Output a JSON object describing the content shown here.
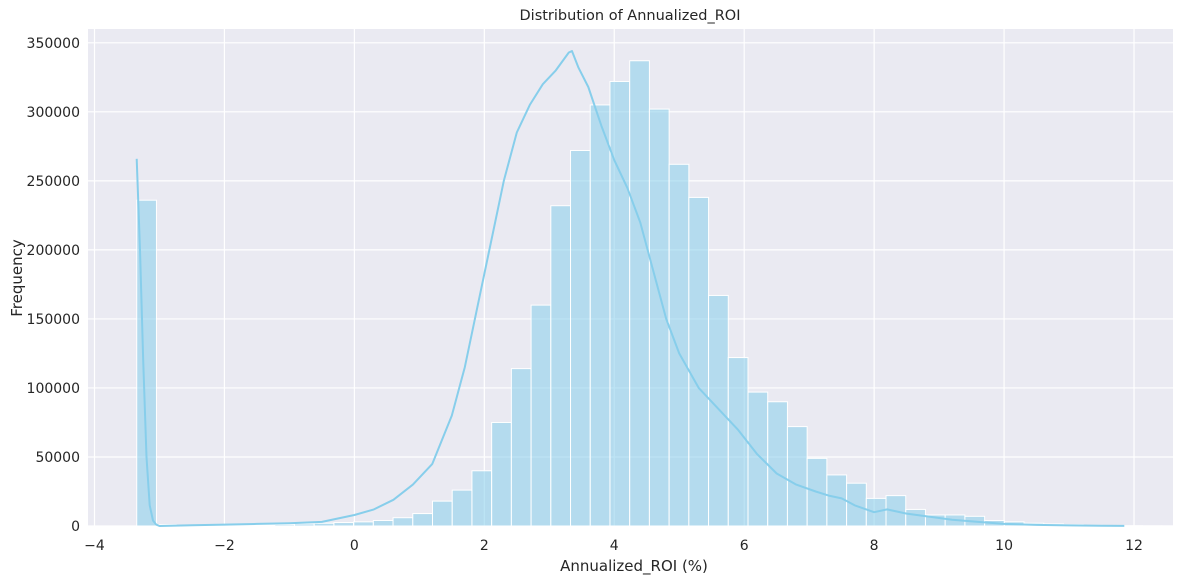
{
  "chart_data": {
    "type": "bar",
    "title": "Distribution of Annualized_ROI",
    "xlabel": "Annualized_ROI (%)",
    "ylabel": "Frequency",
    "xlim": [
      -4.1,
      12.6
    ],
    "ylim": [
      0,
      360000
    ],
    "xticks": [
      -4,
      -2,
      0,
      2,
      4,
      6,
      8,
      10,
      12
    ],
    "xtick_labels": [
      "−4",
      "−2",
      "0",
      "2",
      "4",
      "6",
      "8",
      "10",
      "12"
    ],
    "yticks": [
      0,
      50000,
      100000,
      150000,
      200000,
      250000,
      300000,
      350000
    ],
    "ytick_labels": [
      "0",
      "50000",
      "100000",
      "150000",
      "200000",
      "250000",
      "300000",
      "350000"
    ],
    "bin_start": -3.35,
    "bin_width": 0.3035,
    "bin_counts": [
      236000,
      1000,
      500,
      500,
      500,
      600,
      700,
      1000,
      1500,
      2000,
      2500,
      3000,
      4000,
      6000,
      9000,
      18000,
      26000,
      40000,
      75000,
      114000,
      160000,
      232000,
      272000,
      305000,
      322000,
      337000,
      302000,
      262000,
      238000,
      167000,
      122000,
      97000,
      90000,
      72000,
      49000,
      37000,
      31000,
      20000,
      22000,
      12000,
      8000,
      8000,
      7000,
      4000,
      3000,
      2000,
      1500,
      1000,
      500,
      300,
      200,
      150,
      100
    ],
    "kde": {
      "x": [
        -3.35,
        -3.3,
        -3.25,
        -3.2,
        -3.15,
        -3.1,
        -3.05,
        -3.0,
        -2.5,
        -2.0,
        -1.5,
        -1.0,
        -0.5,
        -0.3,
        0.0,
        0.3,
        0.6,
        0.9,
        1.2,
        1.5,
        1.7,
        1.9,
        2.1,
        2.3,
        2.5,
        2.7,
        2.9,
        3.1,
        3.3,
        3.35,
        3.45,
        3.6,
        3.8,
        4.0,
        4.2,
        4.4,
        4.6,
        4.8,
        5.0,
        5.3,
        5.6,
        5.9,
        6.2,
        6.5,
        6.8,
        7.1,
        7.3,
        7.5,
        7.7,
        8.0,
        8.2,
        8.5,
        8.8,
        9.2,
        9.6,
        10.0,
        10.5,
        11.0,
        11.5,
        11.85
      ],
      "y": [
        266000,
        200000,
        120000,
        50000,
        15000,
        4000,
        1000,
        0,
        500,
        1000,
        1500,
        2000,
        3000,
        5000,
        8000,
        12000,
        19000,
        30000,
        45000,
        80000,
        115000,
        160000,
        205000,
        250000,
        285000,
        305000,
        320000,
        330000,
        343000,
        344000,
        332000,
        318000,
        290000,
        265000,
        245000,
        220000,
        185000,
        150000,
        125000,
        100000,
        85000,
        70000,
        52000,
        38000,
        30000,
        25000,
        22000,
        20000,
        15000,
        10000,
        12000,
        9000,
        7000,
        4500,
        3000,
        1500,
        800,
        400,
        200,
        100
      ]
    }
  }
}
